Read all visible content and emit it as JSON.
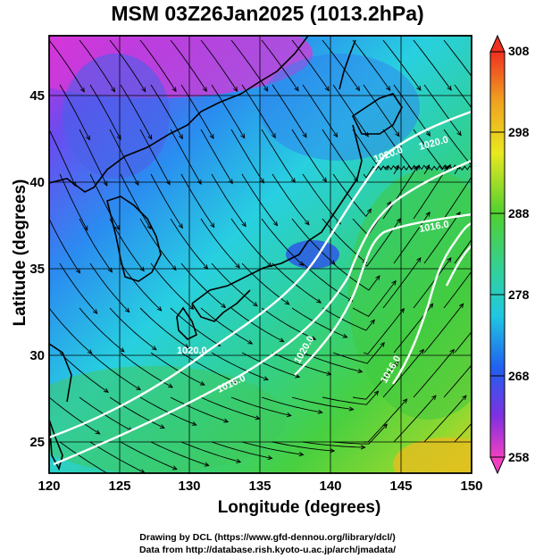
{
  "title": "MSM 03Z26Jan2025 (1013.2hPa)",
  "axes": {
    "xlabel": "Longitude (degrees)",
    "ylabel": "Latitude  (degrees)",
    "xticks": [
      "120",
      "125",
      "130",
      "135",
      "140",
      "145",
      "150"
    ],
    "yticks": [
      "25",
      "30",
      "35",
      "40",
      "45"
    ],
    "xlim": [
      120,
      150
    ],
    "ylim": [
      22.4,
      47.6
    ]
  },
  "colorbar": {
    "ticks": [
      "308",
      "298",
      "288",
      "278",
      "268",
      "258"
    ],
    "range": [
      258,
      308
    ]
  },
  "contour_labels": [
    "1020.0",
    "1020.0",
    "1020.0",
    "1020.0",
    "1016.0",
    "1016.0",
    "1016.0"
  ],
  "credits": {
    "line1": "Drawing by DCL (https://www.gfd-dennou.org/library/dcl/)",
    "line2": "Data from http://database.rish.kyoto-u.ac.jp/arch/jmadata/"
  },
  "colors": {
    "cold": "#e040d0",
    "mid": "#30c8c8",
    "warm": "#30b830",
    "hot": "#e8c020"
  }
}
